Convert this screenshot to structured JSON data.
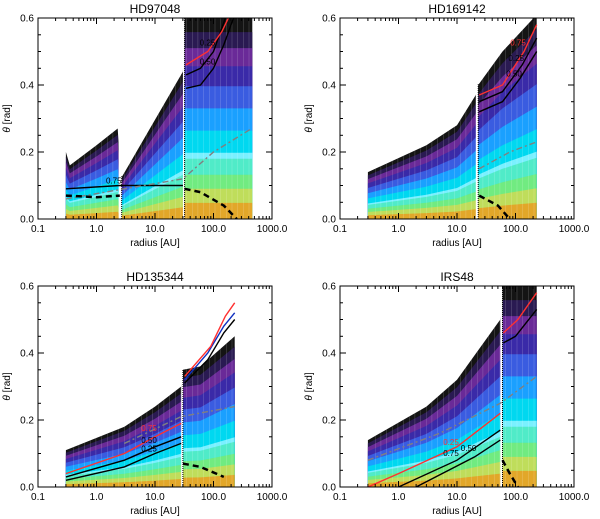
{
  "figure": {
    "xlabel": "radius [AU]",
    "ylabel_symbol": "θ",
    "ylabel_unit": "[rad]"
  },
  "chart_data": [
    {
      "type": "heatmap",
      "title": "HD97048",
      "xlabel": "radius [AU]",
      "ylabel": "θ [rad]",
      "xscale": "log",
      "xlim": [
        0.1,
        1000.0
      ],
      "ylim": [
        0.0,
        0.6
      ],
      "xticks": [
        "0.1",
        "1.0",
        "10.0",
        "100.0",
        "1000.0"
      ],
      "yticks": [
        "0.0",
        "0.2",
        "0.4",
        "0.6"
      ],
      "disk_surface": [
        [
          0.3,
          0.2
        ],
        [
          0.35,
          0.16
        ],
        [
          1.0,
          0.22
        ],
        [
          2.3,
          0.27
        ],
        [
          2.6,
          0.12
        ],
        [
          30,
          0.44
        ],
        [
          32,
          0.6
        ],
        [
          460,
          0.6
        ]
      ],
      "gaps": [
        [
          2.4,
          2.7
        ],
        [
          30,
          32
        ]
      ],
      "contour_labels": [
        "0.75",
        "0.50",
        "0.25"
      ],
      "contour_lines": [
        {
          "color": "#000000",
          "style": "solid",
          "points": [
            [
              0.3,
              0.09
            ],
            [
              2.5,
              0.1
            ],
            [
              30,
              0.1
            ]
          ]
        },
        {
          "color": "#000000",
          "style": "solid",
          "points": [
            [
              34,
              0.39
            ],
            [
              60,
              0.4
            ],
            [
              100,
              0.45
            ],
            [
              150,
              0.52
            ],
            [
              220,
              0.6
            ]
          ]
        },
        {
          "color": "#000000",
          "style": "solid",
          "points": [
            [
              34,
              0.43
            ],
            [
              60,
              0.45
            ],
            [
              100,
              0.5
            ],
            [
              160,
              0.6
            ]
          ]
        },
        {
          "color": "#ff3030",
          "style": "solid",
          "points": [
            [
              34,
              0.46
            ],
            [
              80,
              0.5
            ],
            [
              140,
              0.56
            ],
            [
              180,
              0.6
            ]
          ]
        },
        {
          "color": "#808080",
          "style": "dashdot",
          "points": [
            [
              0.3,
              0.06
            ],
            [
              3,
              0.09
            ],
            [
              30,
              0.12
            ],
            [
              100,
              0.2
            ],
            [
              450,
              0.27
            ]
          ]
        },
        {
          "color": "#000000",
          "style": "dashed",
          "points": [
            [
              32,
              0.09
            ],
            [
              60,
              0.08
            ],
            [
              150,
              0.04
            ],
            [
              250,
              0.0
            ]
          ]
        },
        {
          "color": "#000000",
          "style": "dashed",
          "points": [
            [
              0.3,
              0.07
            ],
            [
              1.0,
              0.065
            ],
            [
              2.5,
              0.07
            ]
          ]
        }
      ]
    },
    {
      "type": "heatmap",
      "title": "HD169142",
      "xlabel": "radius [AU]",
      "ylabel": "θ [rad]",
      "xscale": "log",
      "xlim": [
        0.1,
        1000.0
      ],
      "ylim": [
        0.0,
        0.6
      ],
      "xticks": [
        "0.1",
        "1.0",
        "10.0",
        "100.0",
        "1000.0"
      ],
      "yticks": [
        "0.0",
        "0.2",
        "0.4",
        "0.6"
      ],
      "disk_surface": [
        [
          0.3,
          0.14
        ],
        [
          3,
          0.22
        ],
        [
          10,
          0.28
        ],
        [
          21,
          0.37
        ],
        [
          23,
          0.4
        ],
        [
          60,
          0.5
        ],
        [
          230,
          0.61
        ]
      ],
      "gaps": [
        [
          21,
          23
        ]
      ],
      "contour_labels": [
        "0.50",
        "0.25",
        "0.75"
      ],
      "contour_lines": [
        {
          "color": "#000000",
          "style": "solid",
          "points": [
            [
              24,
              0.32
            ],
            [
              60,
              0.35
            ],
            [
              120,
              0.42
            ],
            [
              230,
              0.5
            ]
          ]
        },
        {
          "color": "#000000",
          "style": "solid",
          "points": [
            [
              24,
              0.35
            ],
            [
              60,
              0.38
            ],
            [
              130,
              0.46
            ],
            [
              230,
              0.54
            ]
          ]
        },
        {
          "color": "#ff3030",
          "style": "solid",
          "points": [
            [
              24,
              0.37
            ],
            [
              60,
              0.4
            ],
            [
              140,
              0.5
            ],
            [
              230,
              0.58
            ]
          ]
        },
        {
          "color": "#808080",
          "style": "dashdot",
          "points": [
            [
              24,
              0.15
            ],
            [
              80,
              0.2
            ],
            [
              230,
              0.23
            ]
          ]
        },
        {
          "color": "#000000",
          "style": "dashed",
          "points": [
            [
              24,
              0.07
            ],
            [
              50,
              0.04
            ],
            [
              80,
              0.0
            ]
          ]
        }
      ]
    },
    {
      "type": "heatmap",
      "title": "HD135344",
      "xlabel": "radius [AU]",
      "ylabel": "θ [rad]",
      "xscale": "log",
      "xlim": [
        0.1,
        1000.0
      ],
      "ylim": [
        0.0,
        0.6
      ],
      "xticks": [
        "0.1",
        "1.0",
        "10.0",
        "100.0",
        "1000.0"
      ],
      "yticks": [
        "0.0",
        "0.2",
        "0.4",
        "0.6"
      ],
      "disk_surface": [
        [
          0.3,
          0.11
        ],
        [
          3,
          0.18
        ],
        [
          10,
          0.24
        ],
        [
          28,
          0.3
        ],
        [
          30,
          0.35
        ],
        [
          60,
          0.36
        ],
        [
          230,
          0.45
        ]
      ],
      "gaps": [
        [
          28,
          30
        ]
      ],
      "contour_labels": [
        "0.25",
        "0.50",
        "0.75"
      ],
      "contour_lines": [
        {
          "color": "#000000",
          "style": "solid",
          "points": [
            [
              0.3,
              0.02
            ],
            [
              3,
              0.06
            ],
            [
              10,
              0.1
            ],
            [
              28,
              0.13
            ]
          ]
        },
        {
          "color": "#000000",
          "style": "solid",
          "points": [
            [
              0.3,
              0.03
            ],
            [
              3,
              0.08
            ],
            [
              10,
              0.12
            ],
            [
              28,
              0.15
            ]
          ]
        },
        {
          "color": "#ff3030",
          "style": "solid",
          "points": [
            [
              0.3,
              0.04
            ],
            [
              3,
              0.1
            ],
            [
              10,
              0.15
            ],
            [
              28,
              0.19
            ]
          ]
        },
        {
          "color": "#000000",
          "style": "solid",
          "points": [
            [
              32,
              0.31
            ],
            [
              80,
              0.38
            ],
            [
              150,
              0.46
            ],
            [
              230,
              0.5
            ]
          ]
        },
        {
          "color": "#1030c0",
          "style": "solid",
          "points": [
            [
              32,
              0.32
            ],
            [
              80,
              0.4
            ],
            [
              150,
              0.48
            ],
            [
              230,
              0.52
            ]
          ]
        },
        {
          "color": "#ff3030",
          "style": "solid",
          "points": [
            [
              32,
              0.33
            ],
            [
              90,
              0.42
            ],
            [
              160,
              0.51
            ],
            [
              230,
              0.55
            ]
          ]
        },
        {
          "color": "#808080",
          "style": "dashdot",
          "points": [
            [
              3,
              0.13
            ],
            [
              28,
              0.21
            ],
            [
              230,
              0.24
            ]
          ]
        },
        {
          "color": "#000000",
          "style": "dashed",
          "points": [
            [
              30,
              0.07
            ],
            [
              60,
              0.06
            ],
            [
              150,
              0.03
            ]
          ]
        }
      ]
    },
    {
      "type": "heatmap",
      "title": "IRS48",
      "xlabel": "radius [AU]",
      "ylabel": "θ [rad]",
      "xscale": "log",
      "xlim": [
        0.1,
        1000.0
      ],
      "ylim": [
        0.0,
        0.6
      ],
      "xticks": [
        "0.1",
        "1.0",
        "10.0",
        "100.0",
        "1000.0"
      ],
      "yticks": [
        "0.0",
        "0.2",
        "0.4",
        "0.6"
      ],
      "disk_surface": [
        [
          0.3,
          0.14
        ],
        [
          3,
          0.24
        ],
        [
          10,
          0.32
        ],
        [
          55,
          0.5
        ],
        [
          60,
          0.6
        ],
        [
          230,
          0.6
        ]
      ],
      "gaps": [
        [
          55,
          60
        ]
      ],
      "contour_labels": [
        "0.25",
        "0.75",
        "0.50"
      ],
      "contour_lines": [
        {
          "color": "#ff3030",
          "style": "solid",
          "points": [
            [
              0.3,
              0.0
            ],
            [
              1,
              0.04
            ],
            [
              10,
              0.12
            ],
            [
              55,
              0.22
            ]
          ]
        },
        {
          "color": "#000000",
          "style": "solid",
          "points": [
            [
              1,
              0.0
            ],
            [
              10,
              0.08
            ],
            [
              55,
              0.17
            ]
          ]
        },
        {
          "color": "#000000",
          "style": "solid",
          "points": [
            [
              2,
              0.0
            ],
            [
              20,
              0.09
            ],
            [
              55,
              0.14
            ]
          ]
        },
        {
          "color": "#000000",
          "style": "solid",
          "points": [
            [
              62,
              0.43
            ],
            [
              100,
              0.45
            ],
            [
              230,
              0.53
            ]
          ]
        },
        {
          "color": "#ff3030",
          "style": "solid",
          "points": [
            [
              62,
              0.46
            ],
            [
              110,
              0.5
            ],
            [
              230,
              0.58
            ]
          ]
        },
        {
          "color": "#808080",
          "style": "dashdot",
          "points": [
            [
              0.3,
              0.08
            ],
            [
              5,
              0.16
            ],
            [
              55,
              0.25
            ],
            [
              230,
              0.33
            ]
          ]
        },
        {
          "color": "#000000",
          "style": "dashed",
          "points": [
            [
              60,
              0.08
            ],
            [
              80,
              0.04
            ],
            [
              110,
              0.0
            ]
          ]
        }
      ]
    }
  ],
  "colors": {
    "palette": [
      "#f0ffff",
      "#7af0ff",
      "#00d8f0",
      "#1aa0ff",
      "#3a5ce0",
      "#3a2aa8",
      "#6a2a98",
      "#2a1a52",
      "#141414"
    ],
    "midplane": [
      "#ff7a00",
      "#ffd23c",
      "#a8f04a",
      "#2ee89a"
    ]
  }
}
